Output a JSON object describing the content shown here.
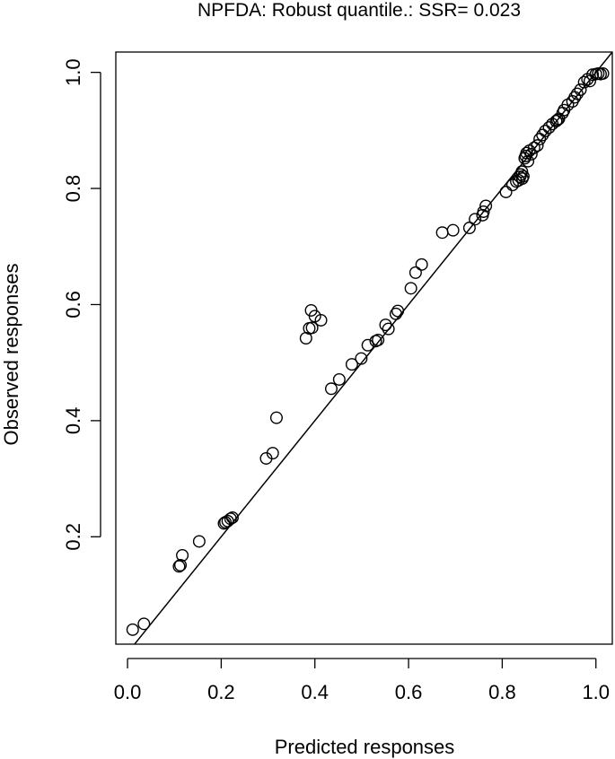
{
  "chart_data": {
    "type": "scatter",
    "title": "NPFDA: Robust quantile.: SSR= 0.023",
    "xlabel": "Predicted responses",
    "ylabel": "Observed responses",
    "xlim": [
      -0.025,
      1.035
    ],
    "ylim": [
      0.015,
      1.035
    ],
    "x_ticks": [
      0.0,
      0.2,
      0.4,
      0.6,
      0.8,
      1.0
    ],
    "x_tick_labels": [
      "0.0",
      "0.2",
      "0.4",
      "0.6",
      "0.8",
      "1.0"
    ],
    "y_ticks": [
      0.2,
      0.4,
      0.6,
      0.8,
      1.0
    ],
    "y_tick_labels": [
      "0.2",
      "0.4",
      "0.6",
      "0.8",
      "1.0"
    ],
    "grid": false,
    "legend": "none",
    "reference_line": {
      "type": "identity",
      "slope": 1,
      "intercept": 0
    },
    "colors": {
      "points": "#000000",
      "line": "#000000",
      "background": "#ffffff"
    },
    "x": [
      0.011,
      0.035,
      0.11,
      0.113,
      0.117,
      0.153,
      0.206,
      0.209,
      0.214,
      0.22,
      0.224,
      0.296,
      0.31,
      0.318,
      0.381,
      0.388,
      0.392,
      0.394,
      0.4,
      0.413,
      0.435,
      0.452,
      0.479,
      0.499,
      0.513,
      0.53,
      0.535,
      0.551,
      0.557,
      0.573,
      0.577,
      0.605,
      0.615,
      0.628,
      0.672,
      0.695,
      0.73,
      0.742,
      0.758,
      0.76,
      0.765,
      0.808,
      0.822,
      0.83,
      0.835,
      0.838,
      0.84,
      0.842,
      0.843,
      0.845,
      0.848,
      0.85,
      0.852,
      0.855,
      0.858,
      0.862,
      0.868,
      0.875,
      0.88,
      0.886,
      0.892,
      0.9,
      0.907,
      0.915,
      0.918,
      0.921,
      0.929,
      0.932,
      0.94,
      0.95,
      0.955,
      0.96,
      0.967,
      0.975,
      0.982,
      0.987,
      0.993,
      1.0,
      1.005,
      1.01,
      1.015
    ],
    "y": [
      0.04,
      0.05,
      0.149,
      0.151,
      0.168,
      0.192,
      0.223,
      0.225,
      0.227,
      0.231,
      0.233,
      0.335,
      0.344,
      0.405,
      0.542,
      0.559,
      0.59,
      0.56,
      0.58,
      0.573,
      0.455,
      0.471,
      0.497,
      0.507,
      0.53,
      0.537,
      0.539,
      0.565,
      0.558,
      0.584,
      0.589,
      0.628,
      0.655,
      0.669,
      0.724,
      0.728,
      0.732,
      0.747,
      0.754,
      0.76,
      0.77,
      0.794,
      0.806,
      0.812,
      0.814,
      0.82,
      0.824,
      0.829,
      0.817,
      0.821,
      0.852,
      0.856,
      0.861,
      0.847,
      0.865,
      0.859,
      0.87,
      0.874,
      0.885,
      0.892,
      0.899,
      0.905,
      0.911,
      0.916,
      0.918,
      0.92,
      0.93,
      0.935,
      0.944,
      0.95,
      0.957,
      0.963,
      0.97,
      0.983,
      0.988,
      0.985,
      0.996,
      0.997,
      0.998,
      0.997,
      0.998
    ]
  }
}
